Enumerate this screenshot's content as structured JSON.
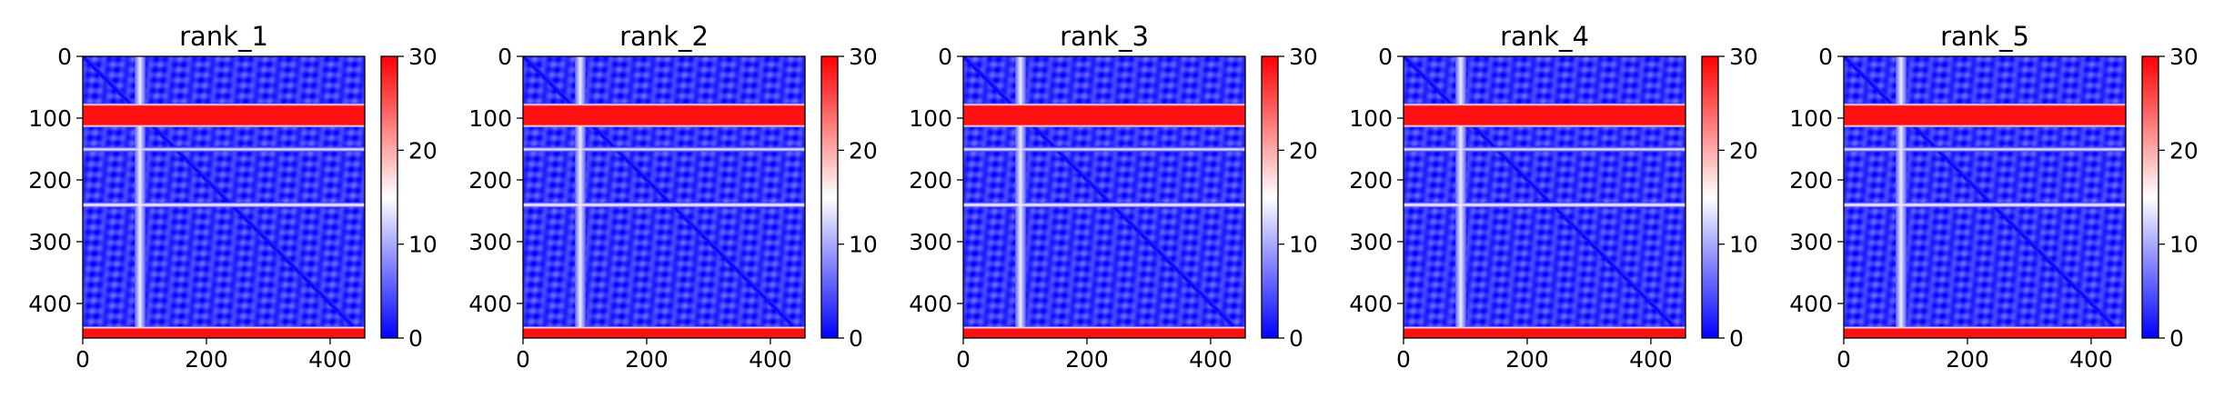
{
  "chart_data": [
    {
      "type": "heatmap",
      "title": "rank_1",
      "xlabel": "",
      "ylabel": "",
      "xlim": [
        0,
        456
      ],
      "ylim": [
        456,
        0
      ],
      "x_ticks": [
        0,
        200,
        400
      ],
      "y_ticks": [
        0,
        100,
        200,
        300,
        400
      ],
      "colorbar": {
        "range": [
          0,
          30
        ],
        "ticks": [
          0,
          10,
          20,
          30
        ]
      },
      "colormap": "bwr",
      "grid": false,
      "features": {
        "base_value": 3,
        "diagonal_value": 0,
        "bright_columns": [
          {
            "center": 92,
            "value": 14
          }
        ],
        "bright_rows": [
          {
            "start": 80,
            "end": 110,
            "value": 29
          },
          {
            "start": 441,
            "end": 456,
            "value": 29
          },
          {
            "center": 150,
            "value": 14
          },
          {
            "center": 240,
            "value": 17
          }
        ]
      }
    },
    {
      "type": "heatmap",
      "title": "rank_2",
      "xlabel": "",
      "ylabel": "",
      "xlim": [
        0,
        456
      ],
      "ylim": [
        456,
        0
      ],
      "x_ticks": [
        0,
        200,
        400
      ],
      "y_ticks": [
        0,
        100,
        200,
        300,
        400
      ],
      "colorbar": {
        "range": [
          0,
          30
        ],
        "ticks": [
          0,
          10,
          20,
          30
        ]
      },
      "colormap": "bwr",
      "grid": false,
      "features": {
        "base_value": 3,
        "diagonal_value": 0,
        "bright_columns": [
          {
            "center": 92,
            "value": 14
          }
        ],
        "bright_rows": [
          {
            "start": 80,
            "end": 110,
            "value": 29
          },
          {
            "start": 441,
            "end": 456,
            "value": 29
          },
          {
            "center": 150,
            "value": 14
          },
          {
            "center": 240,
            "value": 17
          }
        ]
      }
    },
    {
      "type": "heatmap",
      "title": "rank_3",
      "xlabel": "",
      "ylabel": "",
      "xlim": [
        0,
        456
      ],
      "ylim": [
        456,
        0
      ],
      "x_ticks": [
        0,
        200,
        400
      ],
      "y_ticks": [
        0,
        100,
        200,
        300,
        400
      ],
      "colorbar": {
        "range": [
          0,
          30
        ],
        "ticks": [
          0,
          10,
          20,
          30
        ]
      },
      "colormap": "bwr",
      "grid": false,
      "features": {
        "base_value": 3,
        "diagonal_value": 0,
        "bright_columns": [
          {
            "center": 92,
            "value": 14
          }
        ],
        "bright_rows": [
          {
            "start": 80,
            "end": 110,
            "value": 29
          },
          {
            "start": 441,
            "end": 456,
            "value": 29
          },
          {
            "center": 150,
            "value": 14
          },
          {
            "center": 240,
            "value": 17
          }
        ]
      }
    },
    {
      "type": "heatmap",
      "title": "rank_4",
      "xlabel": "",
      "ylabel": "",
      "xlim": [
        0,
        456
      ],
      "ylim": [
        456,
        0
      ],
      "x_ticks": [
        0,
        200,
        400
      ],
      "y_ticks": [
        0,
        100,
        200,
        300,
        400
      ],
      "colorbar": {
        "range": [
          0,
          30
        ],
        "ticks": [
          0,
          10,
          20,
          30
        ]
      },
      "colormap": "bwr",
      "grid": false,
      "features": {
        "base_value": 3,
        "diagonal_value": 0,
        "bright_columns": [
          {
            "center": 92,
            "value": 14
          }
        ],
        "bright_rows": [
          {
            "start": 80,
            "end": 110,
            "value": 29
          },
          {
            "start": 441,
            "end": 456,
            "value": 29
          },
          {
            "center": 150,
            "value": 14
          },
          {
            "center": 240,
            "value": 17
          }
        ]
      }
    },
    {
      "type": "heatmap",
      "title": "rank_5",
      "xlabel": "",
      "ylabel": "",
      "xlim": [
        0,
        456
      ],
      "ylim": [
        456,
        0
      ],
      "x_ticks": [
        0,
        200,
        400
      ],
      "y_ticks": [
        0,
        100,
        200,
        300,
        400
      ],
      "colorbar": {
        "range": [
          0,
          30
        ],
        "ticks": [
          0,
          10,
          20,
          30
        ]
      },
      "colormap": "bwr",
      "grid": false,
      "features": {
        "base_value": 3,
        "diagonal_value": 0,
        "bright_columns": [
          {
            "center": 92,
            "value": 14
          }
        ],
        "bright_rows": [
          {
            "start": 80,
            "end": 110,
            "value": 29
          },
          {
            "start": 441,
            "end": 456,
            "value": 29
          },
          {
            "center": 150,
            "value": 14
          },
          {
            "center": 240,
            "value": 17
          }
        ]
      }
    }
  ]
}
